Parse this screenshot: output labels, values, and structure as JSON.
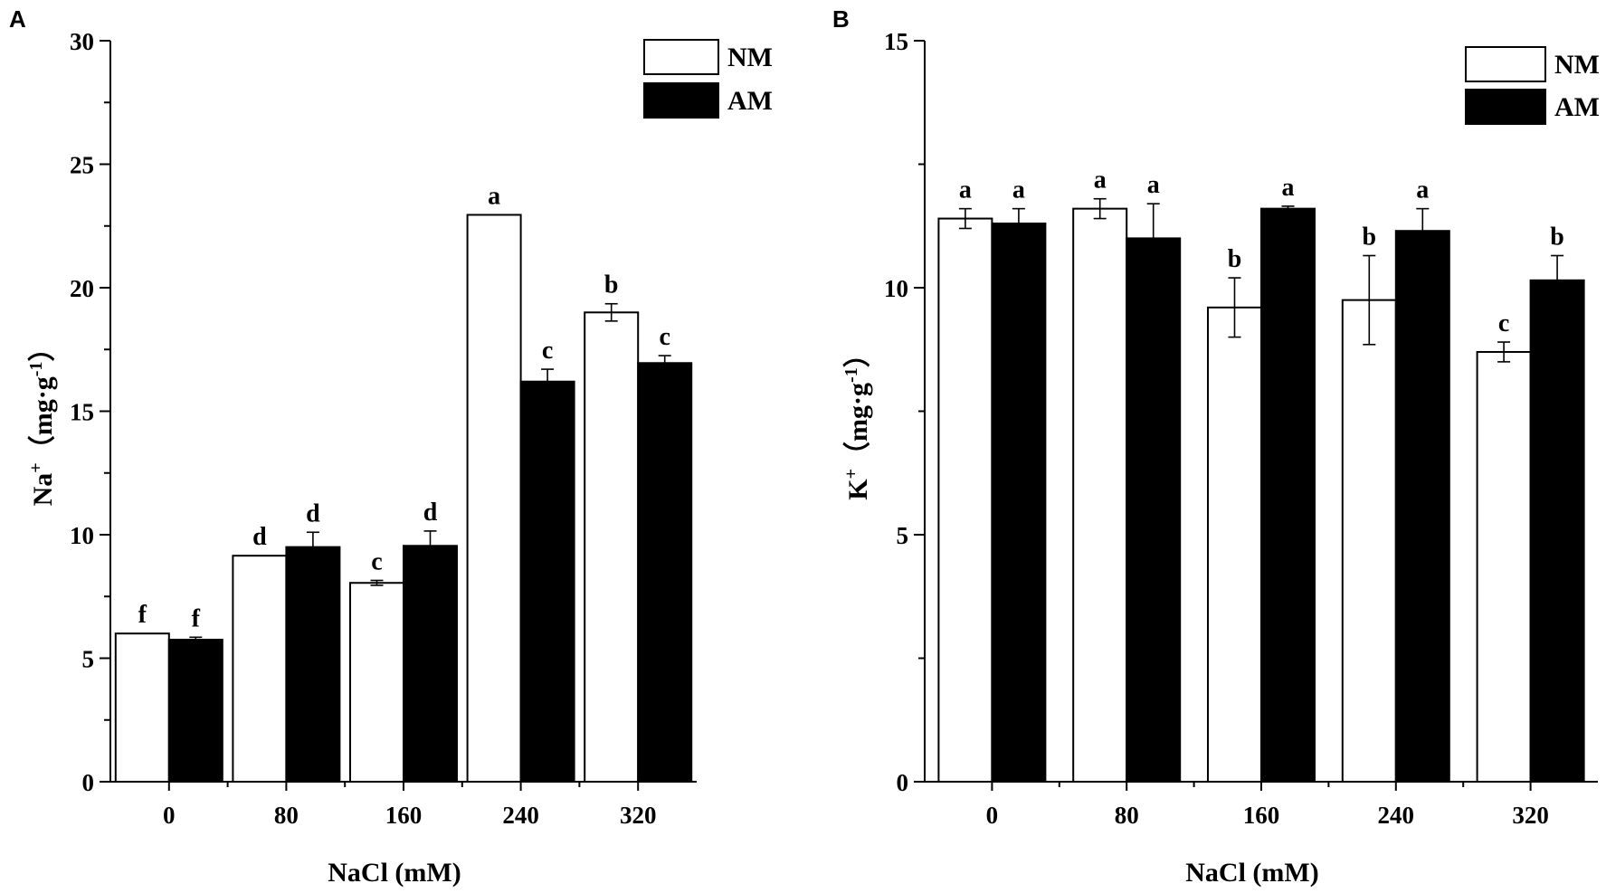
{
  "chart_data": [
    {
      "type": "bar",
      "panel_label": "A",
      "categories": [
        "0",
        "80",
        "160",
        "240",
        "320"
      ],
      "xlabel": "NaCl (mM)",
      "ylabel": {
        "base": "Na",
        "sup": "+",
        "unit_open": "（mg·g",
        "unit_sup": "-1",
        "unit_close": "）"
      },
      "ylim": [
        0,
        30
      ],
      "yticks": [
        0,
        5,
        10,
        15,
        20,
        25,
        30
      ],
      "ytick_labels": [
        "0",
        "5",
        "10",
        "15",
        "20",
        "25",
        "30"
      ],
      "legend_position": "top-right",
      "series": [
        {
          "name": "NM",
          "fill": "#ffffff",
          "values": [
            6.0,
            9.15,
            8.05,
            22.95,
            19.0
          ],
          "errors": [
            0.0,
            0.0,
            0.1,
            0.0,
            0.35
          ],
          "letters": [
            "f",
            "d",
            "c",
            "a",
            "b"
          ]
        },
        {
          "name": "AM",
          "fill": "#000000",
          "values": [
            5.75,
            9.5,
            9.55,
            16.2,
            16.95
          ],
          "errors": [
            0.1,
            0.6,
            0.6,
            0.5,
            0.3
          ],
          "letters": [
            "f",
            "d",
            "d",
            "c",
            "c"
          ]
        }
      ]
    },
    {
      "type": "bar",
      "panel_label": "B",
      "categories": [
        "0",
        "80",
        "160",
        "240",
        "320"
      ],
      "xlabel": "NaCl (mM)",
      "ylabel": {
        "base": "K",
        "sup": "+",
        "unit_open": "（mg·g",
        "unit_sup": "-1",
        "unit_close": "）"
      },
      "ylim": [
        0,
        15
      ],
      "yticks": [
        0,
        5,
        10,
        15
      ],
      "ytick_labels": [
        "0",
        "5",
        "10",
        "15"
      ],
      "legend_position": "top-right",
      "series": [
        {
          "name": "NM",
          "fill": "#ffffff",
          "values": [
            11.4,
            11.6,
            9.6,
            9.75,
            8.7
          ],
          "errors": [
            0.2,
            0.2,
            0.6,
            0.9,
            0.2
          ],
          "letters": [
            "a",
            "a",
            "b",
            "b",
            "c"
          ]
        },
        {
          "name": "AM",
          "fill": "#000000",
          "values": [
            11.3,
            11.0,
            11.6,
            11.15,
            10.15
          ],
          "errors": [
            0.3,
            0.7,
            0.05,
            0.45,
            0.5
          ],
          "letters": [
            "a",
            "a",
            "a",
            "a",
            "b"
          ]
        }
      ]
    }
  ]
}
